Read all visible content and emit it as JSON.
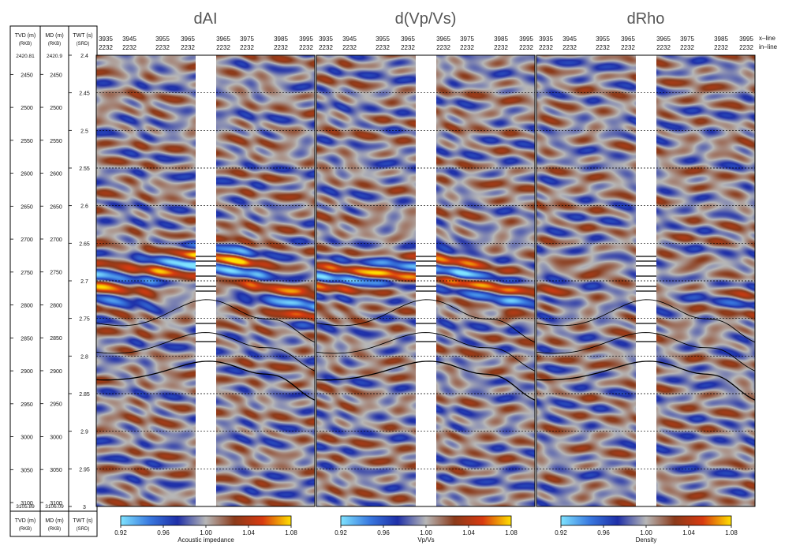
{
  "track_headers": {
    "tvd": [
      "TVD (m)",
      "(RKB)"
    ],
    "md": [
      "MD (m)",
      "(RKB)"
    ],
    "twt": [
      "TWT (s)",
      "(SRD)"
    ]
  },
  "tvd_labels": [
    "2450",
    "2500",
    "2550",
    "2600",
    "2650",
    "2700",
    "2750",
    "2800",
    "2850",
    "2900",
    "2950",
    "3000",
    "3050",
    "3100"
  ],
  "tvd_top": "2420.81",
  "tvd_bottom": "3105.89",
  "md_labels": [
    "2450",
    "2500",
    "2550",
    "2600",
    "2650",
    "2700",
    "2750",
    "2800",
    "2850",
    "2900",
    "2950",
    "3000",
    "3050",
    "3100"
  ],
  "md_top": "2420.9",
  "md_bottom": "3106.09",
  "twt_labels": [
    "2.4",
    "2.45",
    "2.5",
    "2.55",
    "2.6",
    "2.65",
    "2.7",
    "2.75",
    "2.8",
    "2.85",
    "2.9",
    "2.95",
    "3"
  ],
  "axis_line_labels": {
    "xline": "x–line",
    "inline": "in–line"
  },
  "trace_ticks_left": {
    "xline": [
      "3935",
      "3945",
      "3955",
      "3965"
    ],
    "inline": [
      "2232",
      "2232",
      "2232",
      "2232"
    ]
  },
  "trace_ticks_right": {
    "xline": [
      "3965",
      "3975",
      "3985",
      "3995"
    ],
    "inline": [
      "2232",
      "2232",
      "2232",
      "2232"
    ]
  },
  "colors": {
    "colormap": [
      "#7fe3ff",
      "#3a7ae0",
      "#1e2fa8",
      "#b7b7b7",
      "#8a3a1a",
      "#d83a10",
      "#ffe000"
    ],
    "well_gap": "#ffffff",
    "grid": "#000000"
  },
  "chart_data": {
    "type": "heatmap",
    "panels": [
      {
        "title": "dAI",
        "colorbar_label": "Acoustic impedance",
        "ticks": [
          "0.92",
          "0.96",
          "1.00",
          "1.04",
          "1.08"
        ],
        "range": [
          0.92,
          1.08
        ],
        "anomaly": 1.0
      },
      {
        "title": "d(Vp/Vs)",
        "colorbar_label": "Vp/Vs",
        "ticks": [
          "0.92",
          "0.96",
          "1.00",
          "1.04",
          "1.08"
        ],
        "range": [
          0.92,
          1.08
        ],
        "anomaly": 0.75
      },
      {
        "title": "dRho",
        "colorbar_label": "Density",
        "ticks": [
          "0.92",
          "0.96",
          "1.00",
          "1.04",
          "1.08"
        ],
        "range": [
          0.92,
          1.08
        ],
        "anomaly": 0.25
      }
    ],
    "y_axis": {
      "label": "TWT (s)",
      "range": [
        2.4,
        3.0
      ],
      "tick_step": 0.05
    },
    "x_axis": {
      "label": "x–line",
      "range": [
        3935,
        3995
      ]
    },
    "grid_lines": "horizontal dashed at each TWT tick"
  }
}
